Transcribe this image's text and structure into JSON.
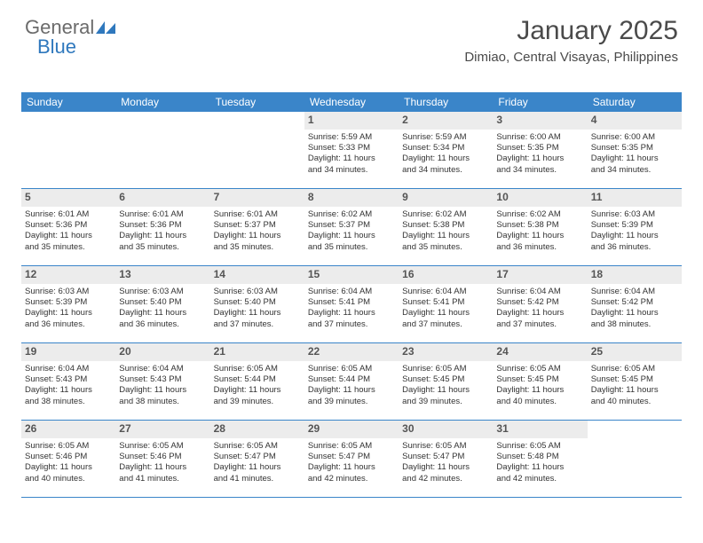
{
  "brand": {
    "text_general": "General",
    "text_blue": "Blue",
    "general_color": "#6b6b6b",
    "blue_color": "#2f78bd",
    "icon_color": "#2f78bd"
  },
  "header": {
    "title": "January 2025",
    "location": "Dimiao, Central Visayas, Philippines",
    "title_fontsize": 30,
    "location_fontsize": 15,
    "text_color": "#4a4a4a"
  },
  "calendar": {
    "weekday_bg": "#3a85c9",
    "weekday_text_color": "#ffffff",
    "daynum_bg": "#ececec",
    "border_color": "#3a85c9",
    "body_text_color": "#333333",
    "weekday_fontsize": 12,
    "daynum_fontsize": 12,
    "body_fontsize": 9.5,
    "weekdays": [
      "Sunday",
      "Monday",
      "Tuesday",
      "Wednesday",
      "Thursday",
      "Friday",
      "Saturday"
    ],
    "weeks": [
      [
        {
          "day": "",
          "lines": []
        },
        {
          "day": "",
          "lines": []
        },
        {
          "day": "",
          "lines": []
        },
        {
          "day": "1",
          "lines": [
            "Sunrise: 5:59 AM",
            "Sunset: 5:33 PM",
            "Daylight: 11 hours",
            "and 34 minutes."
          ]
        },
        {
          "day": "2",
          "lines": [
            "Sunrise: 5:59 AM",
            "Sunset: 5:34 PM",
            "Daylight: 11 hours",
            "and 34 minutes."
          ]
        },
        {
          "day": "3",
          "lines": [
            "Sunrise: 6:00 AM",
            "Sunset: 5:35 PM",
            "Daylight: 11 hours",
            "and 34 minutes."
          ]
        },
        {
          "day": "4",
          "lines": [
            "Sunrise: 6:00 AM",
            "Sunset: 5:35 PM",
            "Daylight: 11 hours",
            "and 34 minutes."
          ]
        }
      ],
      [
        {
          "day": "5",
          "lines": [
            "Sunrise: 6:01 AM",
            "Sunset: 5:36 PM",
            "Daylight: 11 hours",
            "and 35 minutes."
          ]
        },
        {
          "day": "6",
          "lines": [
            "Sunrise: 6:01 AM",
            "Sunset: 5:36 PM",
            "Daylight: 11 hours",
            "and 35 minutes."
          ]
        },
        {
          "day": "7",
          "lines": [
            "Sunrise: 6:01 AM",
            "Sunset: 5:37 PM",
            "Daylight: 11 hours",
            "and 35 minutes."
          ]
        },
        {
          "day": "8",
          "lines": [
            "Sunrise: 6:02 AM",
            "Sunset: 5:37 PM",
            "Daylight: 11 hours",
            "and 35 minutes."
          ]
        },
        {
          "day": "9",
          "lines": [
            "Sunrise: 6:02 AM",
            "Sunset: 5:38 PM",
            "Daylight: 11 hours",
            "and 35 minutes."
          ]
        },
        {
          "day": "10",
          "lines": [
            "Sunrise: 6:02 AM",
            "Sunset: 5:38 PM",
            "Daylight: 11 hours",
            "and 36 minutes."
          ]
        },
        {
          "day": "11",
          "lines": [
            "Sunrise: 6:03 AM",
            "Sunset: 5:39 PM",
            "Daylight: 11 hours",
            "and 36 minutes."
          ]
        }
      ],
      [
        {
          "day": "12",
          "lines": [
            "Sunrise: 6:03 AM",
            "Sunset: 5:39 PM",
            "Daylight: 11 hours",
            "and 36 minutes."
          ]
        },
        {
          "day": "13",
          "lines": [
            "Sunrise: 6:03 AM",
            "Sunset: 5:40 PM",
            "Daylight: 11 hours",
            "and 36 minutes."
          ]
        },
        {
          "day": "14",
          "lines": [
            "Sunrise: 6:03 AM",
            "Sunset: 5:40 PM",
            "Daylight: 11 hours",
            "and 37 minutes."
          ]
        },
        {
          "day": "15",
          "lines": [
            "Sunrise: 6:04 AM",
            "Sunset: 5:41 PM",
            "Daylight: 11 hours",
            "and 37 minutes."
          ]
        },
        {
          "day": "16",
          "lines": [
            "Sunrise: 6:04 AM",
            "Sunset: 5:41 PM",
            "Daylight: 11 hours",
            "and 37 minutes."
          ]
        },
        {
          "day": "17",
          "lines": [
            "Sunrise: 6:04 AM",
            "Sunset: 5:42 PM",
            "Daylight: 11 hours",
            "and 37 minutes."
          ]
        },
        {
          "day": "18",
          "lines": [
            "Sunrise: 6:04 AM",
            "Sunset: 5:42 PM",
            "Daylight: 11 hours",
            "and 38 minutes."
          ]
        }
      ],
      [
        {
          "day": "19",
          "lines": [
            "Sunrise: 6:04 AM",
            "Sunset: 5:43 PM",
            "Daylight: 11 hours",
            "and 38 minutes."
          ]
        },
        {
          "day": "20",
          "lines": [
            "Sunrise: 6:04 AM",
            "Sunset: 5:43 PM",
            "Daylight: 11 hours",
            "and 38 minutes."
          ]
        },
        {
          "day": "21",
          "lines": [
            "Sunrise: 6:05 AM",
            "Sunset: 5:44 PM",
            "Daylight: 11 hours",
            "and 39 minutes."
          ]
        },
        {
          "day": "22",
          "lines": [
            "Sunrise: 6:05 AM",
            "Sunset: 5:44 PM",
            "Daylight: 11 hours",
            "and 39 minutes."
          ]
        },
        {
          "day": "23",
          "lines": [
            "Sunrise: 6:05 AM",
            "Sunset: 5:45 PM",
            "Daylight: 11 hours",
            "and 39 minutes."
          ]
        },
        {
          "day": "24",
          "lines": [
            "Sunrise: 6:05 AM",
            "Sunset: 5:45 PM",
            "Daylight: 11 hours",
            "and 40 minutes."
          ]
        },
        {
          "day": "25",
          "lines": [
            "Sunrise: 6:05 AM",
            "Sunset: 5:45 PM",
            "Daylight: 11 hours",
            "and 40 minutes."
          ]
        }
      ],
      [
        {
          "day": "26",
          "lines": [
            "Sunrise: 6:05 AM",
            "Sunset: 5:46 PM",
            "Daylight: 11 hours",
            "and 40 minutes."
          ]
        },
        {
          "day": "27",
          "lines": [
            "Sunrise: 6:05 AM",
            "Sunset: 5:46 PM",
            "Daylight: 11 hours",
            "and 41 minutes."
          ]
        },
        {
          "day": "28",
          "lines": [
            "Sunrise: 6:05 AM",
            "Sunset: 5:47 PM",
            "Daylight: 11 hours",
            "and 41 minutes."
          ]
        },
        {
          "day": "29",
          "lines": [
            "Sunrise: 6:05 AM",
            "Sunset: 5:47 PM",
            "Daylight: 11 hours",
            "and 42 minutes."
          ]
        },
        {
          "day": "30",
          "lines": [
            "Sunrise: 6:05 AM",
            "Sunset: 5:47 PM",
            "Daylight: 11 hours",
            "and 42 minutes."
          ]
        },
        {
          "day": "31",
          "lines": [
            "Sunrise: 6:05 AM",
            "Sunset: 5:48 PM",
            "Daylight: 11 hours",
            "and 42 minutes."
          ]
        },
        {
          "day": "",
          "lines": []
        }
      ]
    ]
  }
}
